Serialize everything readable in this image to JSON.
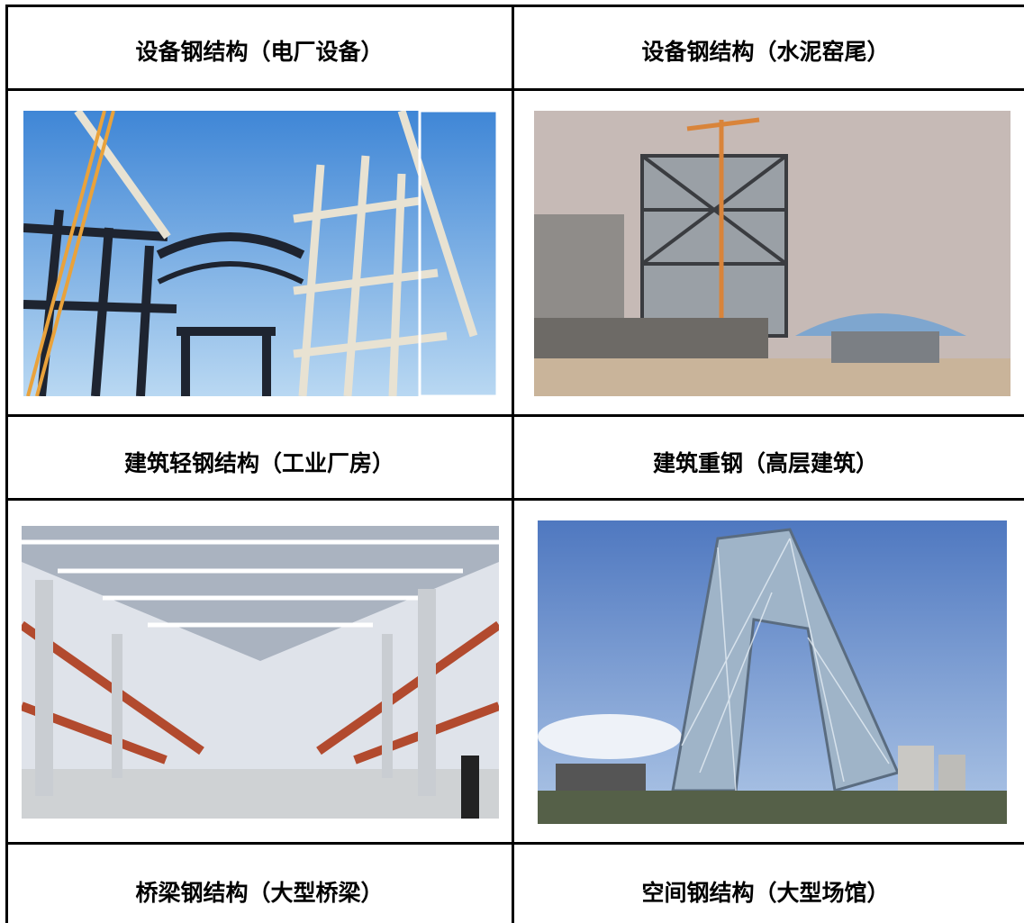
{
  "table": {
    "captions": [
      [
        "设备钢结构（电厂设备）",
        "设备钢结构（水泥窑尾）"
      ],
      [
        "建筑轻钢结构（工业厂房）",
        "建筑重钢（高层建筑）"
      ],
      [
        "桥梁钢结构（大型桥梁）",
        "空间钢结构（大型场馆）"
      ]
    ]
  }
}
